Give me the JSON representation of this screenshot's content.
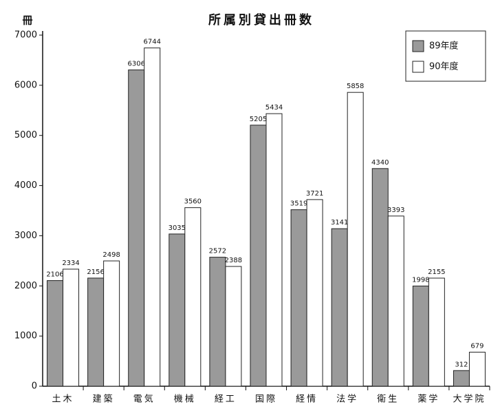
{
  "chart_data": {
    "type": "bar",
    "title": "所属別貸出冊数",
    "y_label": "冊",
    "categories": [
      "土木",
      "建築",
      "電気",
      "機械",
      "経工",
      "国際",
      "経情",
      "法学",
      "衛生",
      "薬学",
      "大学院"
    ],
    "series": [
      {
        "name": "89年度",
        "color": "#9a9a9a",
        "values": [
          2106,
          2156,
          6306,
          3035,
          2572,
          5205,
          3519,
          3141,
          4340,
          1998,
          312
        ]
      },
      {
        "name": "90年度",
        "color": "#ffffff",
        "values": [
          2334,
          2498,
          6744,
          3560,
          2388,
          5434,
          3721,
          5858,
          3393,
          2155,
          679
        ]
      }
    ],
    "ylim": [
      0,
      7000
    ],
    "yticks": [
      0,
      1000,
      2000,
      3000,
      4000,
      5000,
      6000,
      7000
    ],
    "grid": false,
    "legend": "top-right"
  }
}
